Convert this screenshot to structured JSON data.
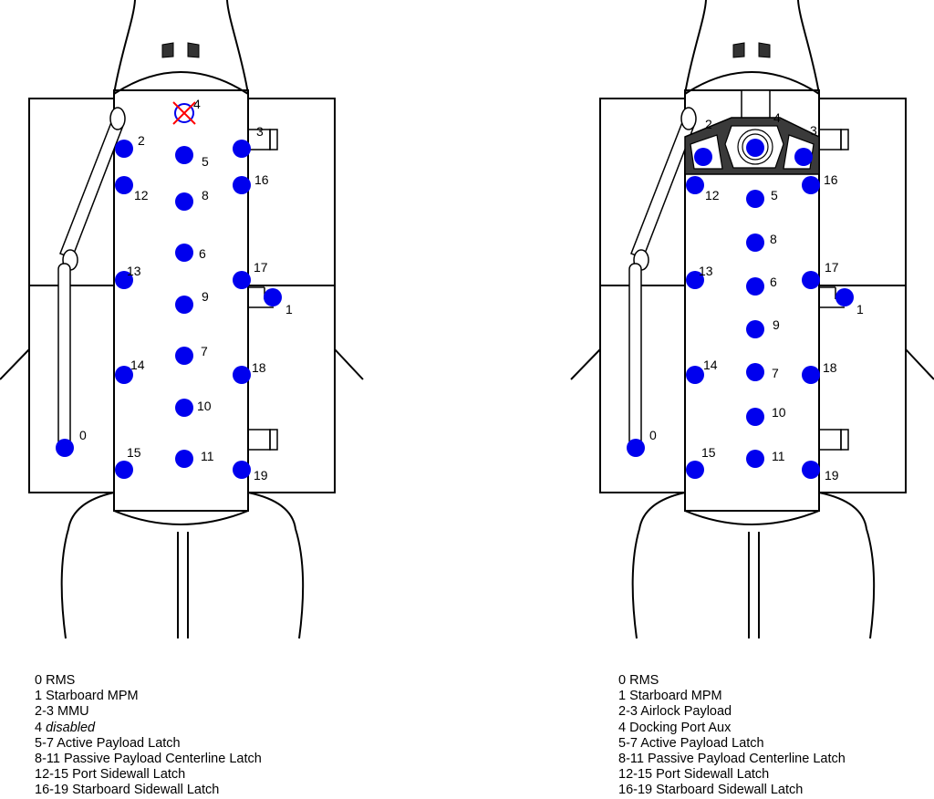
{
  "colors": {
    "attach_point": "#0000ee",
    "disabled_mark": "#ff0000",
    "line": "#000000",
    "hatch": "#3a3a3a"
  },
  "diagrams": [
    {
      "id": "left",
      "labels": [
        "0",
        "1",
        "2",
        "3",
        "4",
        "5",
        "6",
        "7",
        "8",
        "9",
        "10",
        "11",
        "12",
        "13",
        "14",
        "15",
        "16",
        "17",
        "18",
        "19"
      ],
      "disabled_points": [
        "4"
      ],
      "legend": [
        {
          "code": "0",
          "text": "RMS"
        },
        {
          "code": "1",
          "text": "Starboard MPM"
        },
        {
          "code": "2-3",
          "text": "MMU"
        },
        {
          "code": "4",
          "text": "disabled",
          "italic": true
        },
        {
          "code": "5-7",
          "text": "Active Payload Latch"
        },
        {
          "code": "8-11",
          "text": "Passive Payload Centerline Latch"
        },
        {
          "code": "12-15",
          "text": "Port Sidewall Latch"
        },
        {
          "code": "16-19",
          "text": "Starboard Sidewall Latch"
        }
      ]
    },
    {
      "id": "right",
      "labels": [
        "0",
        "1",
        "2",
        "3",
        "4",
        "5",
        "6",
        "7",
        "8",
        "9",
        "10",
        "11",
        "12",
        "13",
        "14",
        "15",
        "16",
        "17",
        "18",
        "19"
      ],
      "disabled_points": [],
      "legend": [
        {
          "code": "0",
          "text": "RMS"
        },
        {
          "code": "1",
          "text": "Starboard MPM"
        },
        {
          "code": "2-3",
          "text": "Airlock Payload"
        },
        {
          "code": "4",
          "text": "Docking Port Aux"
        },
        {
          "code": "5-7",
          "text": "Active Payload Latch"
        },
        {
          "code": "8-11",
          "text": "Passive Payload Centerline Latch"
        },
        {
          "code": "12-15",
          "text": "Port Sidewall Latch"
        },
        {
          "code": "16-19",
          "text": "Starboard Sidewall Latch"
        }
      ]
    }
  ]
}
